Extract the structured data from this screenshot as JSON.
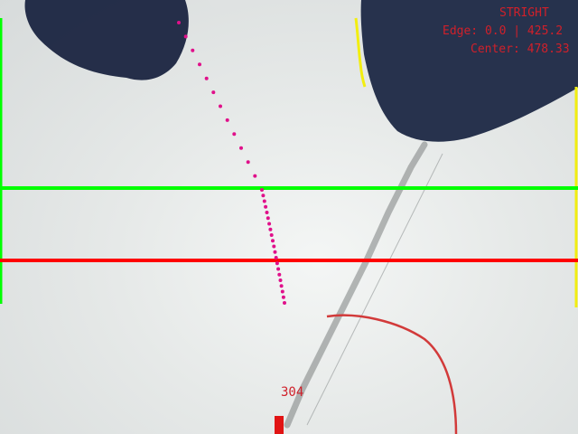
{
  "hud": {
    "status": "STRIGHT",
    "edge_text": "Edge: 0.0 | 425.2",
    "center_text": "Center: 478.33",
    "steer_value": "304"
  },
  "colors": {
    "lookahead_line": "#00ff00",
    "target_line": "#ff0000",
    "path_dots": "#e0108a",
    "left_edge": "#00ff00",
    "right_edge": "#f2ee10",
    "hud_text": "#d0202a",
    "steer_marker": "#e11414"
  }
}
